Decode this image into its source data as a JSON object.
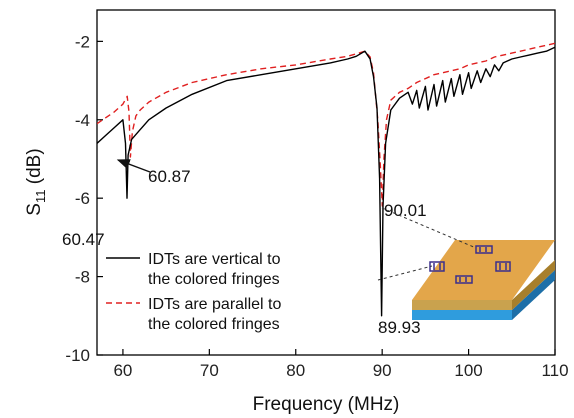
{
  "chart_data": {
    "type": "line",
    "xlabel": "Frequency (MHz)",
    "ylabel_main": "S",
    "ylabel_sub": "11",
    "ylabel_unit": " (dB)",
    "xlim": [
      57,
      110
    ],
    "ylim": [
      -10,
      -1.2
    ],
    "xticks": [
      60,
      70,
      80,
      90,
      100,
      110
    ],
    "yticks": [
      -10,
      -8,
      -6,
      -4,
      -2
    ],
    "legend_position": "bottom-left",
    "series": [
      {
        "name_line1": "IDTs are vertical to",
        "name_line2": "the colored fringes",
        "color": "#000000",
        "dash": "solid",
        "x": [
          57,
          58,
          59,
          60,
          60.3,
          60.47,
          60.6,
          61,
          62,
          63,
          65,
          68,
          72,
          76,
          80,
          84,
          86,
          87,
          88,
          88.6,
          89,
          89.4,
          89.7,
          89.93,
          90.1,
          90.4,
          91,
          92,
          93,
          93.5,
          94,
          94.3,
          95,
          95.3,
          96,
          96.3,
          97,
          97.3,
          98,
          98.3,
          99,
          99.3,
          100,
          100.3,
          101,
          101.4,
          102,
          102.5,
          103,
          103.5,
          104,
          105,
          106,
          107,
          108,
          109,
          110
        ],
        "y": [
          -4.6,
          -4.4,
          -4.2,
          -4.0,
          -4.6,
          -6.0,
          -4.9,
          -4.5,
          -4.25,
          -4.0,
          -3.7,
          -3.35,
          -3.0,
          -2.85,
          -2.7,
          -2.55,
          -2.45,
          -2.38,
          -2.25,
          -2.45,
          -2.9,
          -3.7,
          -5.5,
          -9.0,
          -6.2,
          -4.6,
          -3.75,
          -3.45,
          -3.3,
          -3.6,
          -3.25,
          -3.7,
          -3.15,
          -3.75,
          -3.1,
          -3.65,
          -3.0,
          -3.55,
          -2.95,
          -3.4,
          -2.85,
          -3.35,
          -2.8,
          -3.2,
          -2.75,
          -3.05,
          -2.7,
          -2.9,
          -2.6,
          -2.75,
          -2.55,
          -2.45,
          -2.4,
          -2.35,
          -2.3,
          -2.25,
          -2.15
        ]
      },
      {
        "name_line1": "IDTs are parallel to",
        "name_line2": "the colored fringes",
        "color": "#e02020",
        "dash": "dashed",
        "x": [
          57,
          58,
          59,
          60,
          60.5,
          60.7,
          60.87,
          61.1,
          61.5,
          62,
          63,
          65,
          68,
          72,
          76,
          80,
          84,
          86,
          87,
          88,
          88.6,
          89,
          89.5,
          89.8,
          90.01,
          90.2,
          90.5,
          91,
          92,
          93,
          94,
          95,
          96,
          97,
          98,
          99,
          100,
          101,
          102,
          103,
          104,
          105,
          106,
          107,
          108,
          109,
          110
        ],
        "y": [
          -4.1,
          -3.95,
          -3.8,
          -3.6,
          -3.4,
          -3.8,
          -4.95,
          -4.3,
          -3.9,
          -3.75,
          -3.55,
          -3.3,
          -3.05,
          -2.85,
          -2.7,
          -2.6,
          -2.45,
          -2.38,
          -2.32,
          -2.25,
          -2.4,
          -2.8,
          -4.0,
          -5.2,
          -6.2,
          -5.0,
          -4.0,
          -3.5,
          -3.3,
          -3.2,
          -3.05,
          -2.95,
          -2.85,
          -2.8,
          -2.75,
          -2.7,
          -2.6,
          -2.55,
          -2.5,
          -2.4,
          -2.35,
          -2.3,
          -2.25,
          -2.2,
          -2.15,
          -2.1,
          -2.05
        ]
      }
    ],
    "annotations": [
      {
        "text": "60.47",
        "x": 60.47,
        "y": -6.0
      },
      {
        "text": "60.87",
        "x": 60.87,
        "y": -4.95
      },
      {
        "text": "90.01",
        "x": 90.01,
        "y": -6.2
      },
      {
        "text": "89.93",
        "x": 89.93,
        "y": -9.0
      }
    ]
  }
}
